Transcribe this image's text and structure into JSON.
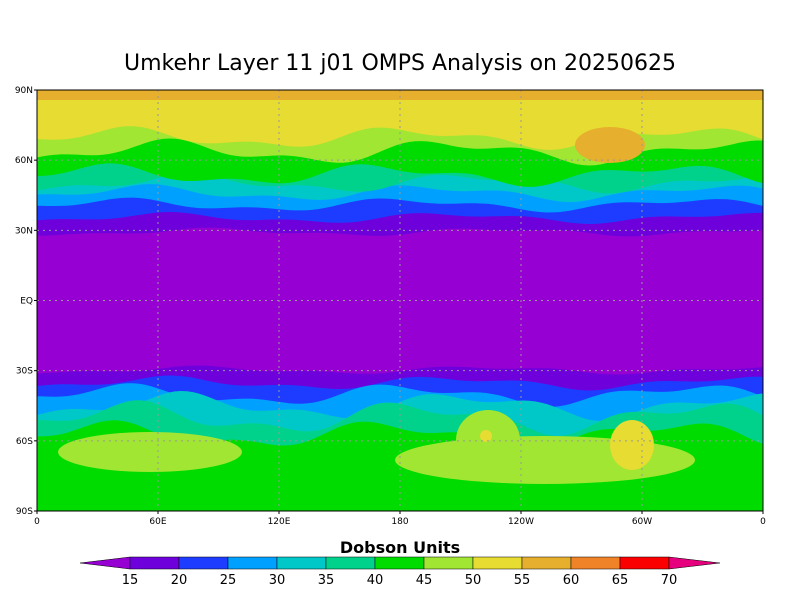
{
  "title": "Umkehr Layer 11 j01 OMPS Analysis on 20250625",
  "lat_labels": [
    "90N",
    "60N",
    "30N",
    "EQ",
    "30S",
    "60S",
    "90S"
  ],
  "lon_labels": [
    "0",
    "60E",
    "120E",
    "180",
    "120W",
    "60W",
    "0"
  ],
  "colorbar": {
    "title": "Dobson Units",
    "levels": [
      15,
      20,
      25,
      30,
      35,
      40,
      45,
      50,
      55,
      60,
      65,
      70
    ],
    "colors": [
      "#9600d2",
      "#6e00dc",
      "#1e3cff",
      "#00a0ff",
      "#00c8c8",
      "#00d28c",
      "#00dc00",
      "#a0e632",
      "#e6dc32",
      "#e6af2d",
      "#f08228",
      "#fa0000",
      "#e6007d"
    ]
  }
}
